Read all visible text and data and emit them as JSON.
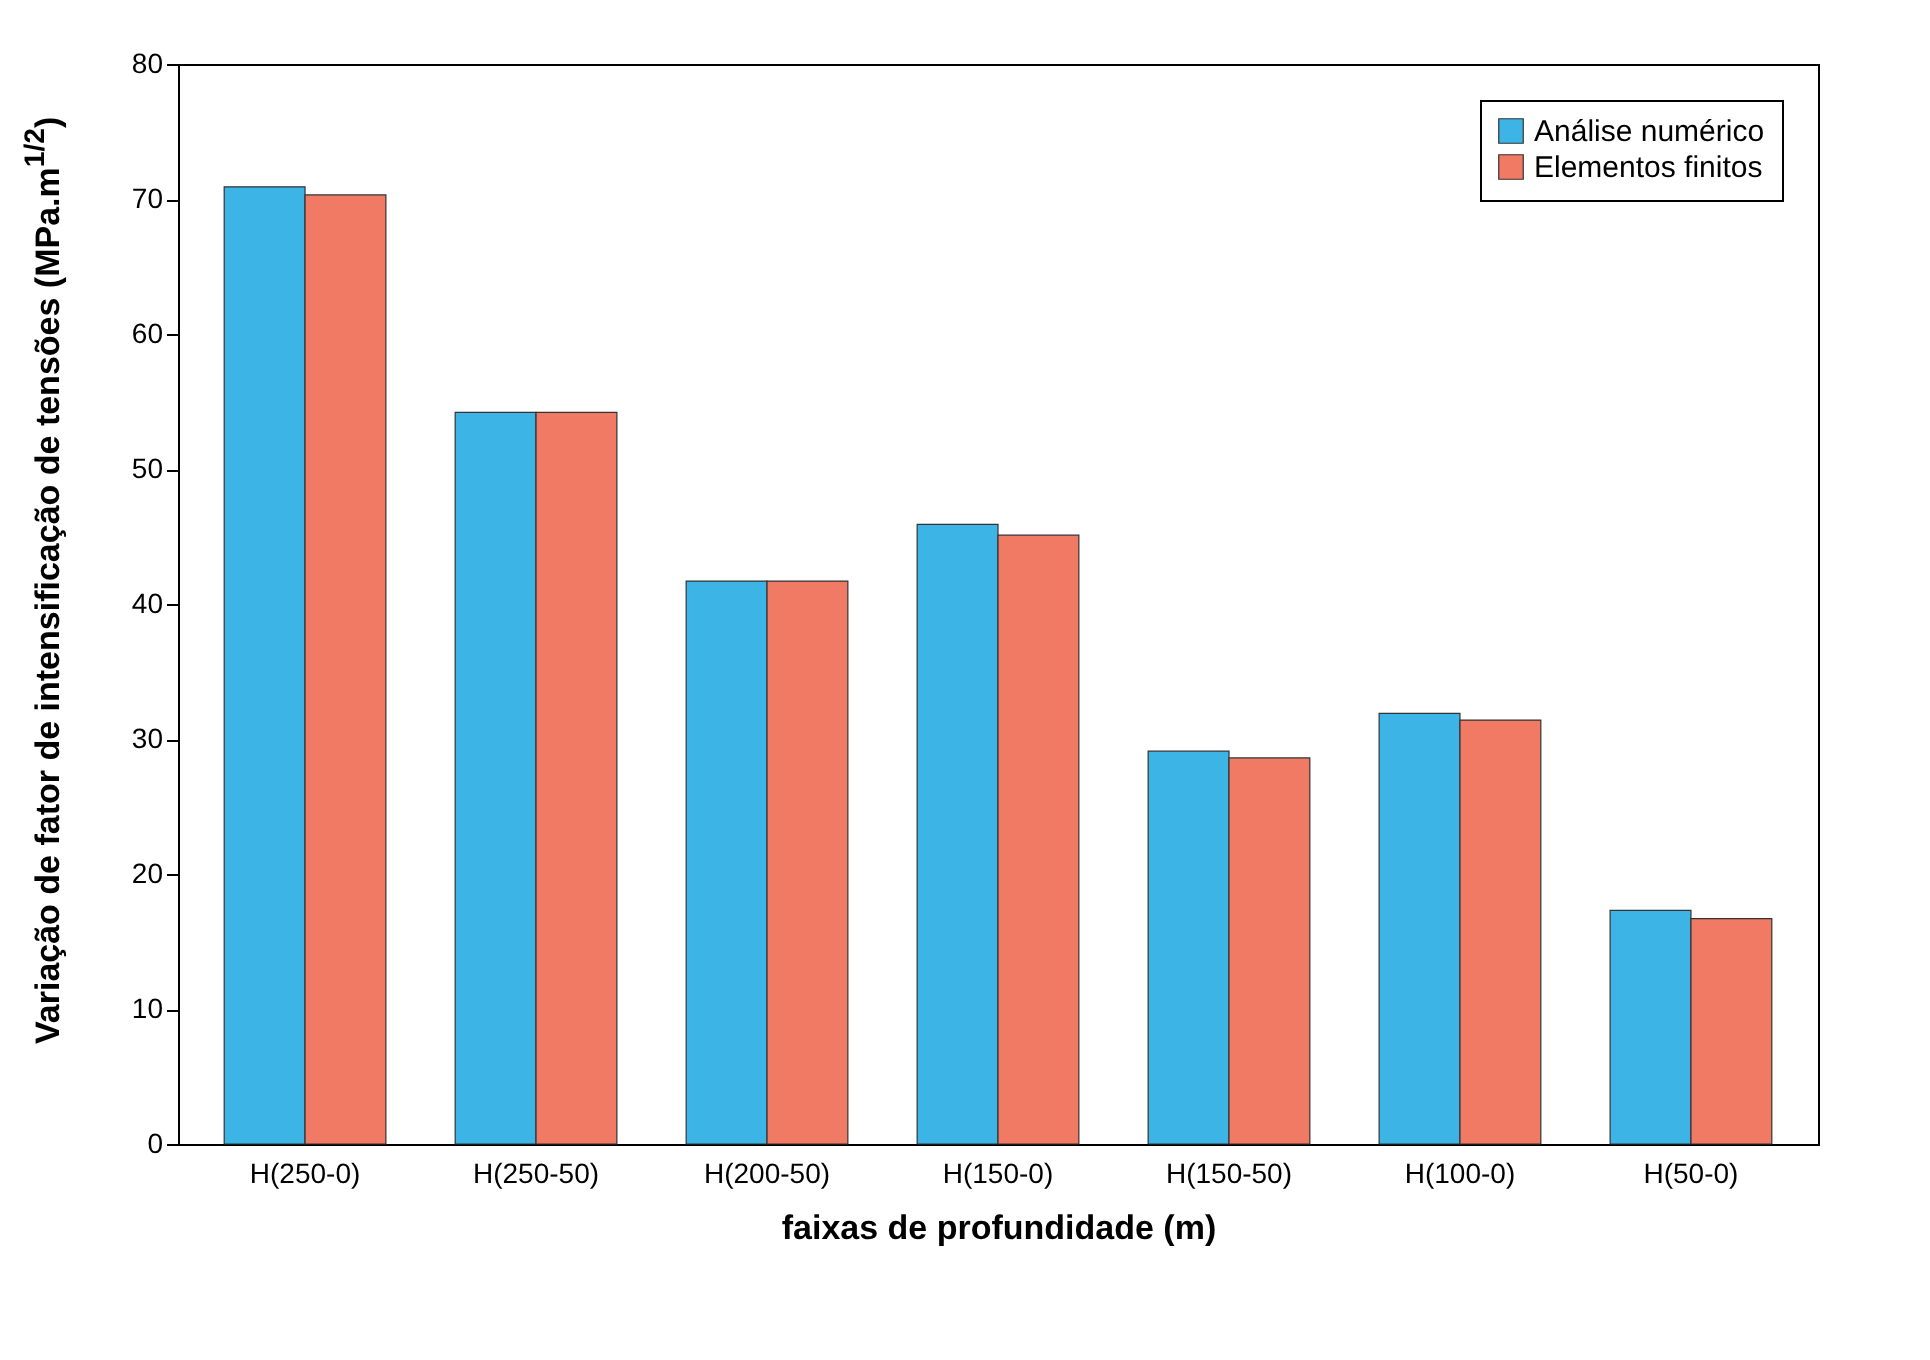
{
  "chart_data": {
    "type": "bar",
    "xlabel": "faixas de profundidade (m)",
    "ylabel": "Variação de fator de intensificação de tensões (MPa.m$^{1/2}$)",
    "categories": [
      "H(250-0)",
      "H(250-50)",
      "H(200-50)",
      "H(150-0)",
      "H(150-50)",
      "H(100-0)",
      "H(50-0)"
    ],
    "series": [
      {
        "name": "Análise numérico",
        "color": "#3cb4e6",
        "values": [
          70.9,
          54.2,
          41.7,
          45.9,
          29.1,
          31.9,
          17.3
        ]
      },
      {
        "name": "Elementos finitos",
        "color": "#f07a64",
        "values": [
          70.3,
          54.2,
          41.7,
          45.1,
          28.6,
          31.4,
          16.7
        ]
      }
    ],
    "ylim": [
      0,
      80
    ],
    "yticks": [
      0,
      10,
      20,
      30,
      40,
      50,
      60,
      70,
      80
    ],
    "grid": false,
    "legend": "top right"
  }
}
